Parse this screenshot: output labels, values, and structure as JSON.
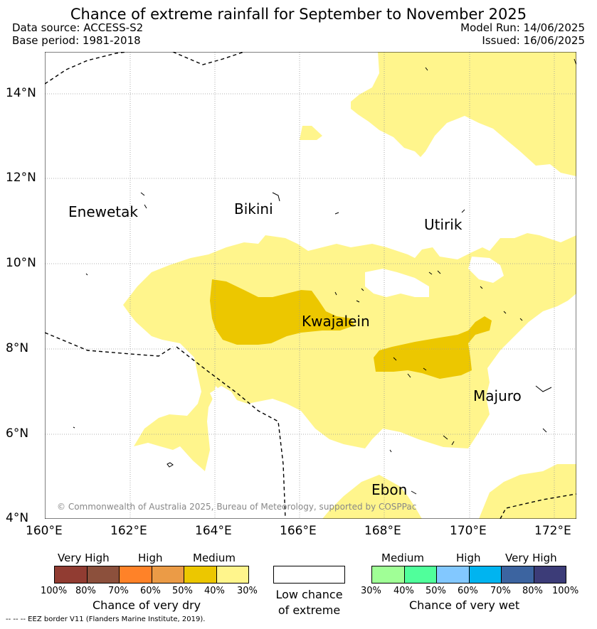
{
  "title": "Chance of extreme rainfall for September to November 2025",
  "header": {
    "data_source": "Data source: ACCESS-S2",
    "base_period": "Base period: 1981-2018",
    "model_run": "Model Run: 14/06/2025",
    "issued": "Issued: 16/06/2025"
  },
  "map": {
    "lat_labels": [
      "14°N",
      "12°N",
      "10°N",
      "8°N",
      "6°N",
      "4°N"
    ],
    "lon_labels": [
      "160°E",
      "162°E",
      "164°E",
      "166°E",
      "168°E",
      "170°E",
      "172°E"
    ],
    "places": {
      "enewetak": "Enewetak",
      "bikini": "Bikini",
      "utirik": "Utirik",
      "kwajalein": "Kwajalein",
      "majuro": "Majuro",
      "ebon": "Ebon"
    },
    "copyright": "© Commonwealth of Australia 2025, Bureau of Meteorology, supported by COSPPac",
    "colors": {
      "medium_dry": "#fff58c",
      "high_dry_50": "#ecc700"
    }
  },
  "legend": {
    "dry": {
      "headings": [
        "Very High",
        "High",
        "Medium"
      ],
      "ticks": [
        "100%",
        "80%",
        "70%",
        "60%",
        "50%",
        "40%",
        "30%"
      ],
      "colors": [
        "#913c32",
        "#8c503c",
        "#ff8228",
        "#eb9b46",
        "#ecc700",
        "#fff58c"
      ],
      "title": "Chance of very dry"
    },
    "low": {
      "line1": "Low chance",
      "line2": "of extreme"
    },
    "wet": {
      "headings": [
        "Medium",
        "High",
        "Very High"
      ],
      "ticks": [
        "30%",
        "40%",
        "50%",
        "60%",
        "70%",
        "80%",
        "100%"
      ],
      "colors": [
        "#a0ff96",
        "#50ff9b",
        "#82c8ff",
        "#00b4f0",
        "#3c64a0",
        "#3c3c78"
      ],
      "title": "Chance of very wet"
    }
  },
  "footer": "--  --  -- EEZ border V11 (Flanders Marine Institute, 2019)."
}
